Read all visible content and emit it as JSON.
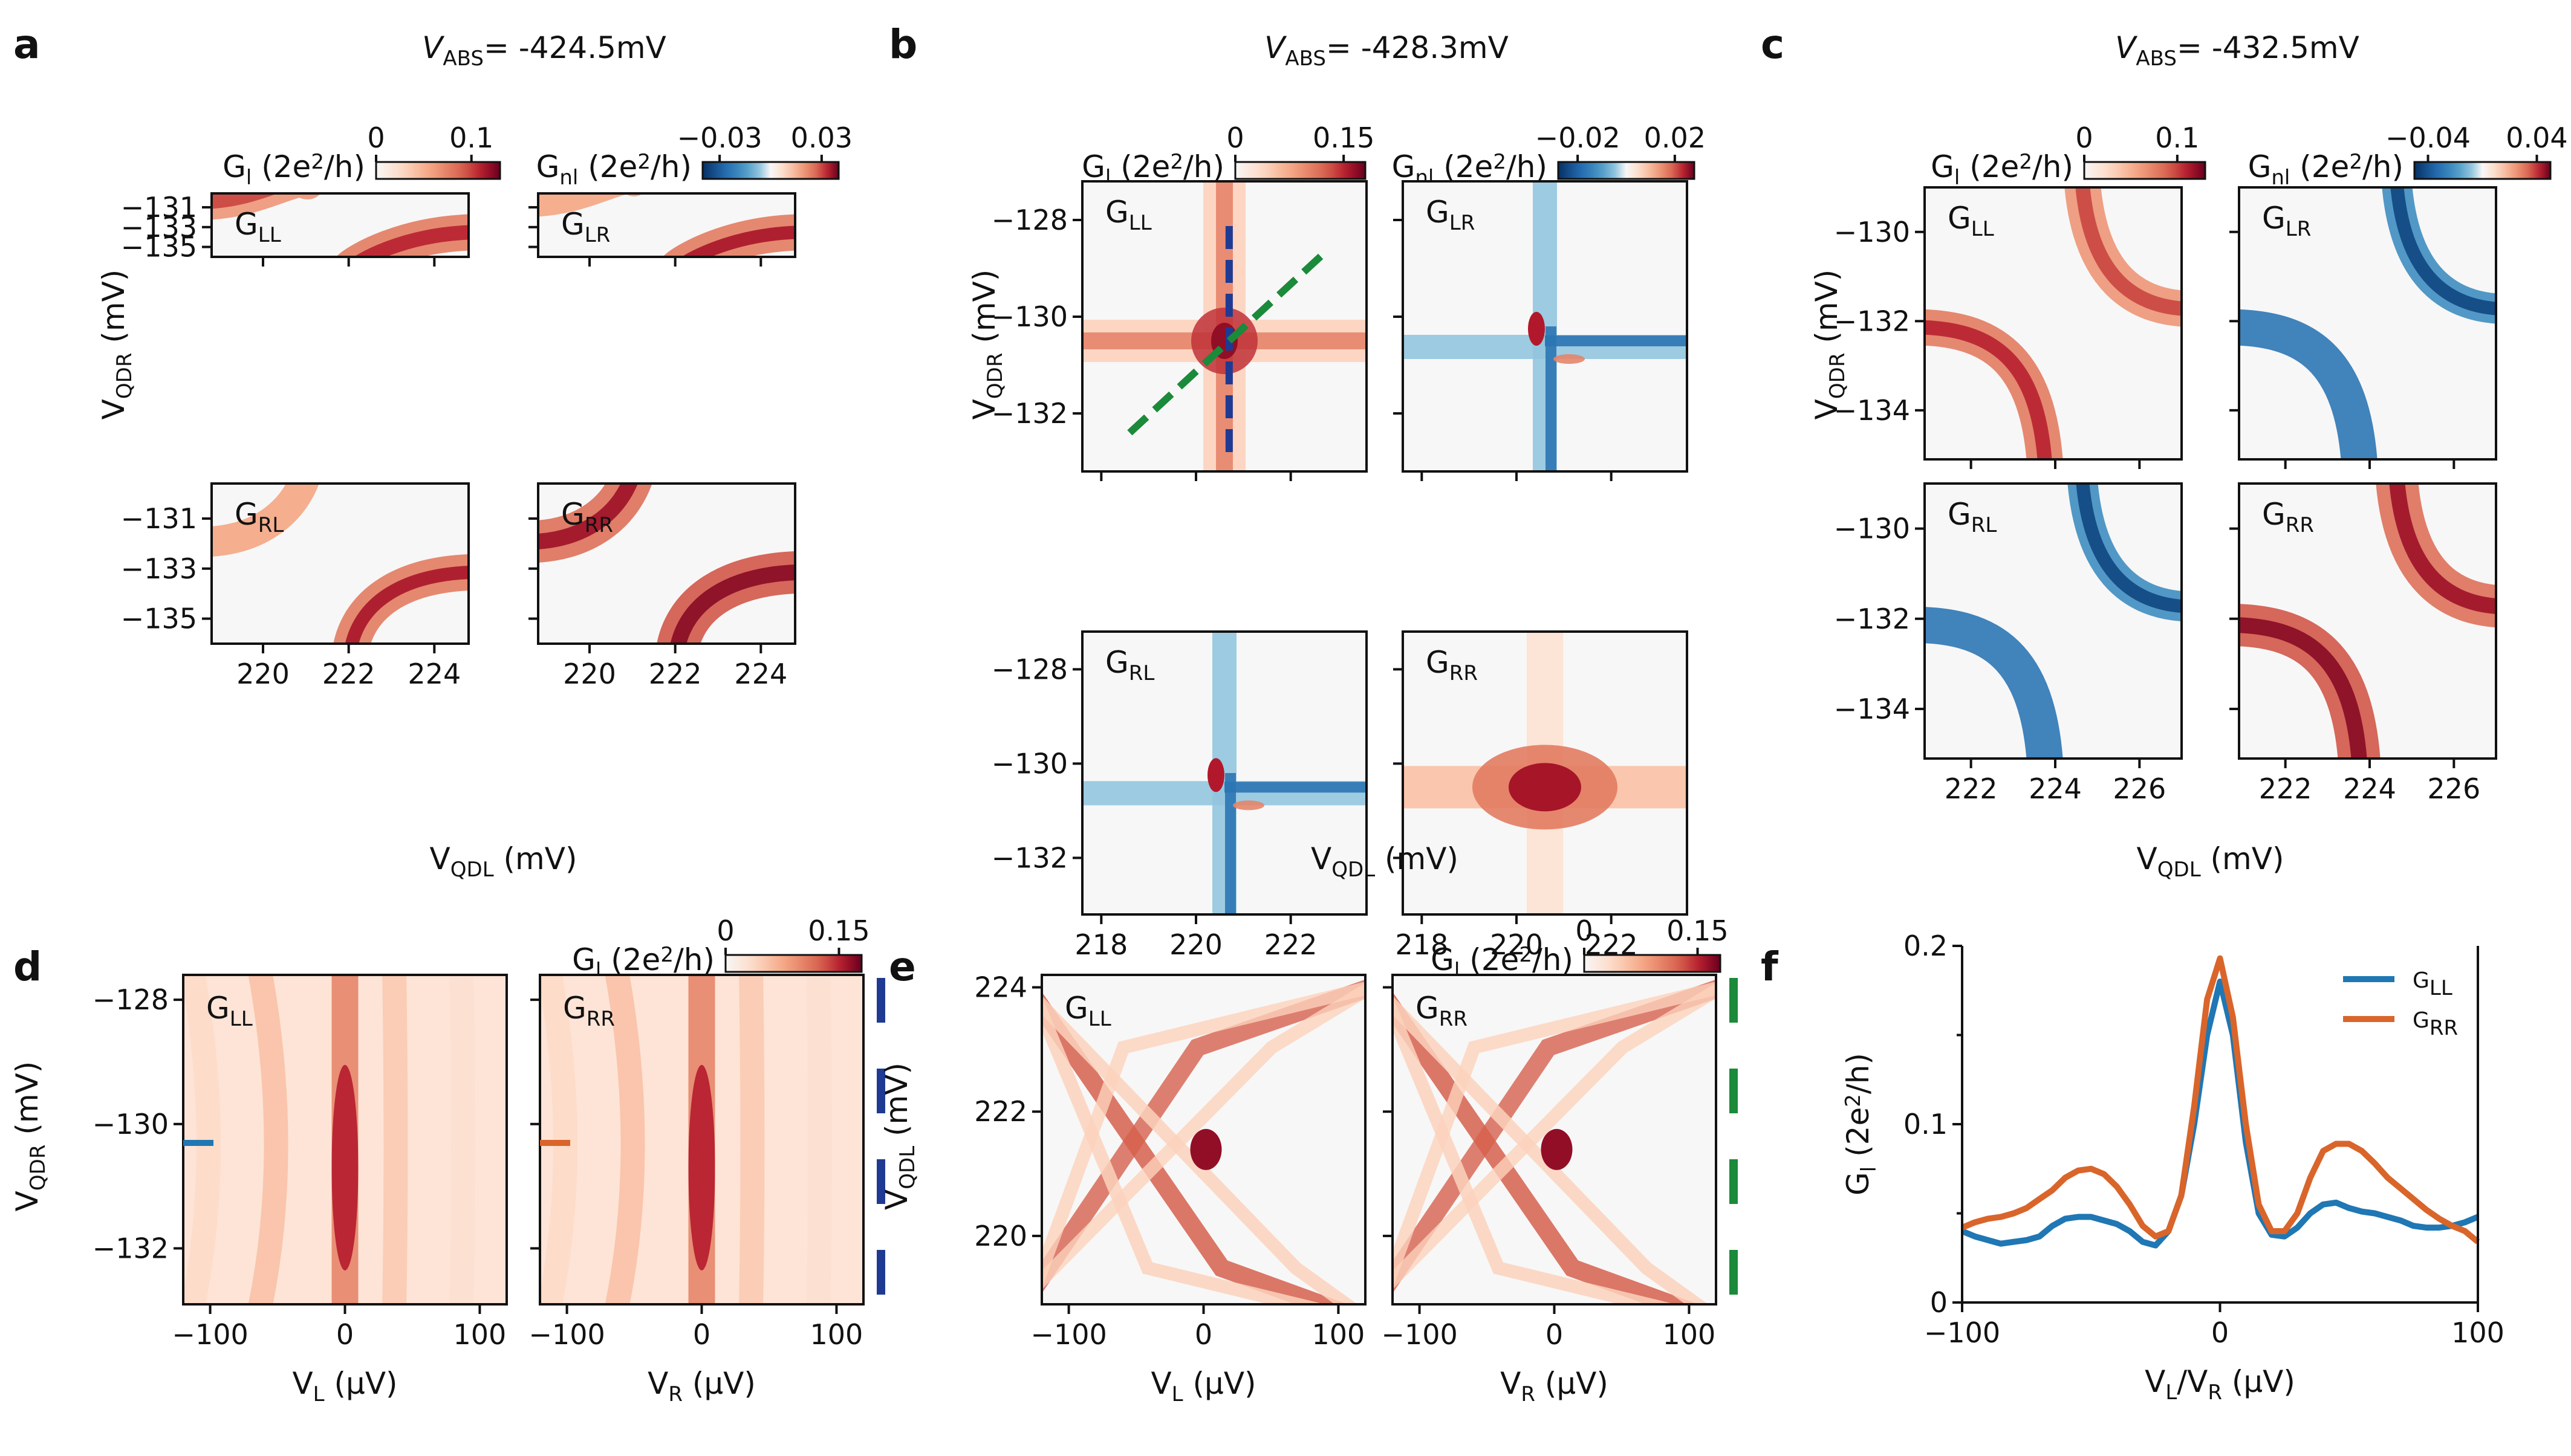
{
  "chart_data": [
    {
      "panel": "a",
      "type": "heatmap",
      "title": "V_ABS= -424.5mV",
      "xlabel": "V_QDL (mV)",
      "ylabel": "V_QDR (mV)",
      "xlim": [
        218.8,
        224.8
      ],
      "ylim": [
        -136.0,
        -129.6
      ],
      "xticks": [
        220,
        222,
        224
      ],
      "yticks": [
        -131,
        -133,
        -135
      ],
      "colorbars": [
        {
          "label": "G_l (2e^2/h)",
          "ticks": [
            "0",
            "0.1"
          ],
          "range": [
            0,
            0.13
          ]
        },
        {
          "label": "G_nl (2e^2/h)",
          "ticks": [
            "−0.03",
            "0.03"
          ],
          "range": [
            -0.04,
            0.04
          ]
        }
      ],
      "subplots": [
        {
          "name": "G_LL",
          "crossing": {
            "x": 221.6,
            "y": -132.9
          }
        },
        {
          "name": "G_LR",
          "crossing": {
            "x": 221.6,
            "y": -132.9
          }
        },
        {
          "name": "G_RL",
          "crossing": {
            "x": 221.6,
            "y": -132.9
          }
        },
        {
          "name": "G_RR",
          "crossing": {
            "x": 221.6,
            "y": -132.9
          }
        }
      ]
    },
    {
      "panel": "b",
      "type": "heatmap",
      "title": "V_ABS= -428.3mV",
      "xlabel": "V_QDL (mV)",
      "ylabel": "V_QDR (mV)",
      "xlim": [
        217.6,
        223.6
      ],
      "ylim": [
        -133.2,
        -127.2
      ],
      "xticks": [
        218,
        220,
        222
      ],
      "yticks": [
        -128,
        -130,
        -132
      ],
      "colorbars": [
        {
          "label": "G_l (2e^2/h)",
          "ticks": [
            "0",
            "0.15"
          ],
          "range": [
            0,
            0.18
          ]
        },
        {
          "label": "G_nl (2e^2/h)",
          "ticks": [
            "−0.02",
            "0.02"
          ],
          "range": [
            -0.028,
            0.028
          ]
        }
      ],
      "subplots": [
        {
          "name": "G_LL",
          "crossing": {
            "x": 220.6,
            "y": -130.5
          }
        },
        {
          "name": "G_LR",
          "crossing": {
            "x": 220.6,
            "y": -130.5
          }
        },
        {
          "name": "G_RL",
          "crossing": {
            "x": 220.6,
            "y": -130.5
          }
        },
        {
          "name": "G_RR",
          "crossing": {
            "x": 220.6,
            "y": -130.5
          }
        }
      ],
      "annotations": [
        {
          "type": "dashed-line",
          "color": "#1f3a93",
          "from": {
            "x": 220.7,
            "y": -132.8
          },
          "to": {
            "x": 220.7,
            "y": -128.0
          }
        },
        {
          "type": "dashed-line",
          "color": "#1b8a3a",
          "from": {
            "x": 218.6,
            "y": -132.4
          },
          "to": {
            "x": 222.8,
            "y": -128.6
          }
        }
      ]
    },
    {
      "panel": "c",
      "type": "heatmap",
      "title": "V_ABS= -432.5mV",
      "xlabel": "V_QDL (mV)",
      "ylabel": "V_QDR (mV)",
      "xlim": [
        220.9,
        227.0
      ],
      "ylim": [
        -135.1,
        -129.0
      ],
      "xticks": [
        222,
        224,
        226
      ],
      "yticks": [
        -130,
        -132,
        -134
      ],
      "colorbars": [
        {
          "label": "G_l (2e^2/h)",
          "ticks": [
            "0",
            "0.1"
          ],
          "range": [
            0,
            0.13
          ]
        },
        {
          "label": "G_nl (2e^2/h)",
          "ticks": [
            "−0.04",
            "0.04"
          ],
          "range": [
            -0.05,
            0.05
          ]
        }
      ],
      "subplots": [
        {
          "name": "G_LL",
          "crossing": {
            "x": 224.2,
            "y": -132.0
          }
        },
        {
          "name": "G_LR",
          "crossing": {
            "x": 224.2,
            "y": -132.0
          }
        },
        {
          "name": "G_RL",
          "crossing": {
            "x": 224.2,
            "y": -132.0
          }
        },
        {
          "name": "G_RR",
          "crossing": {
            "x": 224.2,
            "y": -132.0
          }
        }
      ]
    },
    {
      "panel": "d",
      "type": "heatmap",
      "ylabel": "V_QDR (mV)",
      "ylim": [
        -132.9,
        -127.6
      ],
      "yticks": [
        -128,
        -130,
        -132
      ],
      "colorbar": {
        "label": "G_l (2e^2/h)",
        "ticks": [
          "0",
          "0.15"
        ],
        "range": [
          0,
          0.18
        ]
      },
      "subplots": [
        {
          "name": "G_LL",
          "xlabel": "V_L (μV)",
          "xlim": [
            -120,
            120
          ],
          "xticks": [
            -100,
            0,
            100
          ],
          "marker": {
            "y": -130.25,
            "color": "#1f77b4"
          }
        },
        {
          "name": "G_RR",
          "xlabel": "V_R (μV)",
          "xlim": [
            -120,
            120
          ],
          "xticks": [
            -100,
            0,
            100
          ],
          "marker": {
            "y": -130.25,
            "color": "#d9652a"
          }
        }
      ]
    },
    {
      "panel": "e",
      "type": "heatmap",
      "ylabel": "V_QDL (mV)",
      "ylim": [
        218.9,
        224.2
      ],
      "yticks": [
        220,
        222,
        224
      ],
      "colorbar": {
        "label": "G_l (2e^2/h)",
        "ticks": [
          "0",
          "0.15"
        ],
        "range": [
          0,
          0.18
        ]
      },
      "subplots": [
        {
          "name": "G_LL",
          "xlabel": "V_L (μV)",
          "xlim": [
            -120,
            120
          ],
          "xticks": [
            -100,
            0,
            100
          ]
        },
        {
          "name": "G_RR",
          "xlabel": "V_R (μV)",
          "xlim": [
            -120,
            120
          ],
          "xticks": [
            -100,
            0,
            100
          ]
        }
      ]
    },
    {
      "panel": "f",
      "type": "line",
      "xlabel": "V_L/V_R (μV)",
      "ylabel": "G_l (2e^2/h)",
      "xlim": [
        -100,
        100
      ],
      "ylim": [
        0,
        0.2
      ],
      "xticks": [
        -100,
        0,
        100
      ],
      "yticks": [
        0,
        0.1,
        0.2
      ],
      "legend": "top-right",
      "x": [
        -100,
        -95,
        -90,
        -85,
        -80,
        -75,
        -70,
        -65,
        -60,
        -55,
        -50,
        -45,
        -40,
        -35,
        -30,
        -25,
        -20,
        -15,
        -10,
        -5,
        0,
        5,
        10,
        15,
        20,
        25,
        30,
        35,
        40,
        45,
        50,
        55,
        60,
        65,
        70,
        75,
        80,
        85,
        90,
        95,
        100
      ],
      "series": [
        {
          "name": "G_LL",
          "color": "#1f77b4",
          "values": [
            0.04,
            0.037,
            0.035,
            0.033,
            0.034,
            0.035,
            0.037,
            0.043,
            0.047,
            0.048,
            0.048,
            0.046,
            0.044,
            0.04,
            0.034,
            0.032,
            0.04,
            0.06,
            0.1,
            0.15,
            0.18,
            0.15,
            0.09,
            0.05,
            0.038,
            0.037,
            0.042,
            0.05,
            0.055,
            0.056,
            0.053,
            0.051,
            0.05,
            0.048,
            0.046,
            0.043,
            0.042,
            0.042,
            0.043,
            0.045,
            0.048
          ]
        },
        {
          "name": "G_RR",
          "color": "#d9652a",
          "values": [
            0.042,
            0.045,
            0.047,
            0.048,
            0.05,
            0.053,
            0.058,
            0.063,
            0.07,
            0.074,
            0.075,
            0.072,
            0.065,
            0.055,
            0.043,
            0.037,
            0.04,
            0.06,
            0.11,
            0.17,
            0.193,
            0.16,
            0.1,
            0.055,
            0.04,
            0.04,
            0.05,
            0.07,
            0.085,
            0.089,
            0.089,
            0.085,
            0.078,
            0.07,
            0.064,
            0.058,
            0.052,
            0.047,
            0.043,
            0.04,
            0.034
          ]
        }
      ]
    }
  ]
}
